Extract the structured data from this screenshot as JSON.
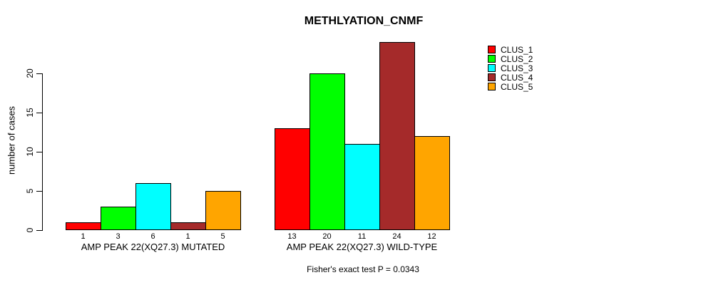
{
  "chart_data": {
    "type": "bar",
    "title": "METHLYATION_CNMF",
    "ylabel": "number of cases",
    "yticks": [
      0,
      5,
      10,
      15,
      20
    ],
    "ylim": [
      0,
      24
    ],
    "grid": false,
    "legend_position": "right",
    "bar_value_labels_shown": true,
    "categories": [
      "AMP PEAK 22(XQ27.3) MUTATED",
      "AMP PEAK 22(XQ27.3) WILD-TYPE"
    ],
    "series": [
      {
        "name": "CLUS_1",
        "color": "#FF0000",
        "values": [
          1,
          13
        ]
      },
      {
        "name": "CLUS_2",
        "color": "#00FF00",
        "values": [
          3,
          20
        ]
      },
      {
        "name": "CLUS_3",
        "color": "#00FFFF",
        "values": [
          6,
          11
        ]
      },
      {
        "name": "CLUS_4",
        "color": "#A52A2A",
        "values": [
          1,
          24
        ]
      },
      {
        "name": "CLUS_5",
        "color": "#FFA500",
        "values": [
          5,
          12
        ]
      }
    ],
    "annotation": "Fisher's exact test P = 0.0343"
  }
}
